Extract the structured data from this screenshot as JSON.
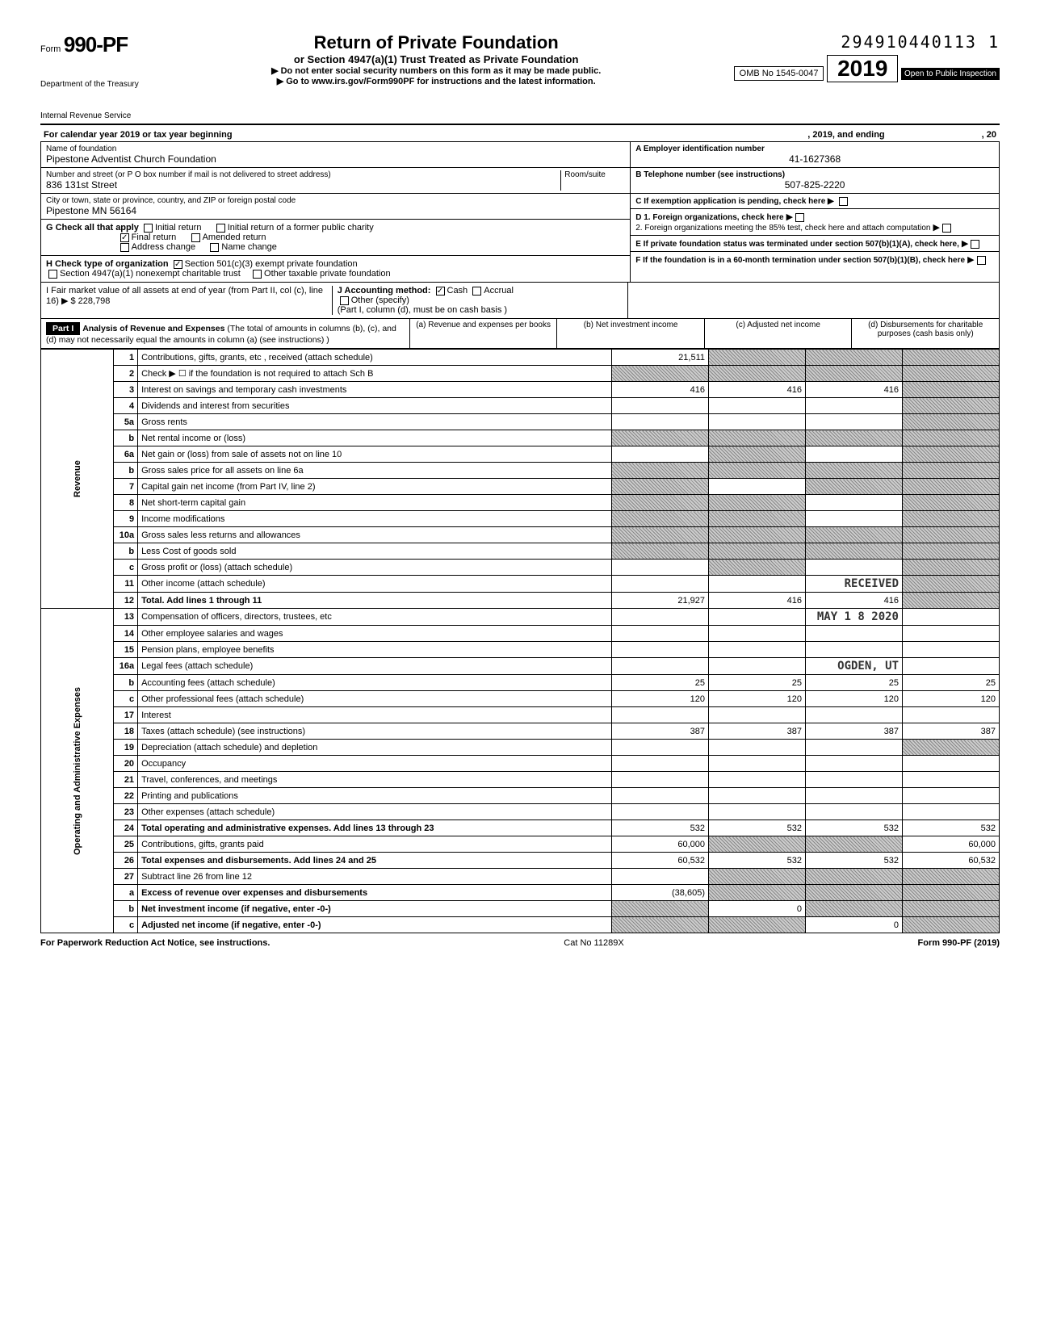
{
  "header": {
    "form_number_prefix": "Form",
    "form_number": "990-PF",
    "dept1": "Department of the Treasury",
    "dept2": "Internal Revenue Service",
    "main_title": "Return of Private Foundation",
    "subtitle": "or Section 4947(a)(1) Trust Treated as Private Foundation",
    "instr1": "▶ Do not enter social security numbers on this form as it may be made public.",
    "instr2": "▶ Go to www.irs.gov/Form990PF for instructions and the latest information.",
    "serial": "294910440113 1",
    "omb": "OMB No 1545-0047",
    "year": "2019",
    "inspection": "Open to Public Inspection",
    "cal_year": "For calendar year 2019 or tax year beginning",
    "cal_mid": ", 2019, and ending",
    "cal_end": ", 20"
  },
  "id": {
    "name_label": "Name of foundation",
    "name": "Pipestone Adventist Church Foundation",
    "addr_label": "Number and street (or P O box number if mail is not delivered to street address)",
    "addr": "836 131st Street",
    "room_label": "Room/suite",
    "city_label": "City or town, state or province, country, and ZIP or foreign postal code",
    "city": "Pipestone MN 56164",
    "a_label": "A Employer identification number",
    "a_value": "41-1627368",
    "b_label": "B Telephone number (see instructions)",
    "b_value": "507-825-2220",
    "c_label": "C If exemption application is pending, check here ▶",
    "d1_label": "D 1. Foreign organizations, check here",
    "d2_label": "2. Foreign organizations meeting the 85% test, check here and attach computation",
    "e_label": "E If private foundation status was terminated under section 507(b)(1)(A), check here,",
    "f_label": "F If the foundation is in a 60-month termination under section 507(b)(1)(B), check here"
  },
  "g": {
    "label": "G Check all that apply",
    "initial": "Initial return",
    "initial_former": "Initial return of a former public charity",
    "final": "Final return",
    "amended": "Amended return",
    "addr_change": "Address change",
    "name_change": "Name change"
  },
  "h": {
    "label": "H Check type of organization",
    "opt1": "Section 501(c)(3) exempt private foundation",
    "opt2": "Section 4947(a)(1) nonexempt charitable trust",
    "opt3": "Other taxable private foundation"
  },
  "i": {
    "label": "I Fair market value of all assets at end of year (from Part II, col (c), line 16) ▶ $",
    "value": "228,798",
    "j_label": "J Accounting method:",
    "j_cash": "Cash",
    "j_accrual": "Accrual",
    "j_other": "Other (specify)",
    "j_note": "(Part I, column (d), must be on cash basis )"
  },
  "part1": {
    "tag": "Part I",
    "title": "Analysis of Revenue and Expenses",
    "note": "(The total of amounts in columns (b), (c), and (d) may not necessarily equal the amounts in column (a) (see instructions) )",
    "col_a": "(a) Revenue and expenses per books",
    "col_b": "(b) Net investment income",
    "col_c": "(c) Adjusted net income",
    "col_d": "(d) Disbursements for charitable purposes (cash basis only)"
  },
  "side": {
    "revenue": "Revenue",
    "expenses": "Operating and Administrative Expenses"
  },
  "stamp": {
    "received": "RECEIVED",
    "date": "MAY 1 8 2020",
    "loc": "OGDEN, UT"
  },
  "lines": [
    {
      "no": "1",
      "desc": "Contributions, gifts, grants, etc , received (attach schedule)",
      "a": "21,511",
      "b": "shade",
      "c": "shade",
      "d": "shade"
    },
    {
      "no": "2",
      "desc": "Check ▶ ☐ if the foundation is not required to attach Sch B",
      "a": "shade",
      "b": "shade",
      "c": "shade",
      "d": "shade"
    },
    {
      "no": "3",
      "desc": "Interest on savings and temporary cash investments",
      "a": "416",
      "b": "416",
      "c": "416",
      "d": "shade"
    },
    {
      "no": "4",
      "desc": "Dividends and interest from securities",
      "a": "",
      "b": "",
      "c": "",
      "d": "shade"
    },
    {
      "no": "5a",
      "desc": "Gross rents",
      "a": "",
      "b": "",
      "c": "",
      "d": "shade"
    },
    {
      "no": "b",
      "desc": "Net rental income or (loss)",
      "a": "shade",
      "b": "shade",
      "c": "shade",
      "d": "shade"
    },
    {
      "no": "6a",
      "desc": "Net gain or (loss) from sale of assets not on line 10",
      "a": "",
      "b": "shade",
      "c": "",
      "d": "shade"
    },
    {
      "no": "b",
      "desc": "Gross sales price for all assets on line 6a",
      "a": "shade",
      "b": "shade",
      "c": "shade",
      "d": "shade"
    },
    {
      "no": "7",
      "desc": "Capital gain net income (from Part IV, line 2)",
      "a": "shade",
      "b": "",
      "c": "shade",
      "d": "shade"
    },
    {
      "no": "8",
      "desc": "Net short-term capital gain",
      "a": "shade",
      "b": "shade",
      "c": "",
      "d": "shade"
    },
    {
      "no": "9",
      "desc": "Income modifications",
      "a": "shade",
      "b": "shade",
      "c": "",
      "d": "shade"
    },
    {
      "no": "10a",
      "desc": "Gross sales less returns and allowances",
      "a": "shade",
      "b": "shade",
      "c": "shade",
      "d": "shade"
    },
    {
      "no": "b",
      "desc": "Less Cost of goods sold",
      "a": "shade",
      "b": "shade",
      "c": "shade",
      "d": "shade"
    },
    {
      "no": "c",
      "desc": "Gross profit or (loss) (attach schedule)",
      "a": "",
      "b": "shade",
      "c": "",
      "d": "shade"
    },
    {
      "no": "11",
      "desc": "Other income (attach schedule)",
      "a": "",
      "b": "",
      "c": "stamp-rec",
      "d": "shade"
    },
    {
      "no": "12",
      "desc": "Total. Add lines 1 through 11",
      "a": "21,927",
      "b": "416",
      "c": "416",
      "d": "shade",
      "bold": true
    },
    {
      "no": "13",
      "desc": "Compensation of officers, directors, trustees, etc",
      "a": "",
      "b": "",
      "c": "stamp-date",
      "d": ""
    },
    {
      "no": "14",
      "desc": "Other employee salaries and wages",
      "a": "",
      "b": "",
      "c": "",
      "d": ""
    },
    {
      "no": "15",
      "desc": "Pension plans, employee benefits",
      "a": "",
      "b": "",
      "c": "",
      "d": ""
    },
    {
      "no": "16a",
      "desc": "Legal fees (attach schedule)",
      "a": "",
      "b": "",
      "c": "stamp-loc",
      "d": ""
    },
    {
      "no": "b",
      "desc": "Accounting fees (attach schedule)",
      "a": "25",
      "b": "25",
      "c": "25",
      "d": "25"
    },
    {
      "no": "c",
      "desc": "Other professional fees (attach schedule)",
      "a": "120",
      "b": "120",
      "c": "120",
      "d": "120"
    },
    {
      "no": "17",
      "desc": "Interest",
      "a": "",
      "b": "",
      "c": "",
      "d": ""
    },
    {
      "no": "18",
      "desc": "Taxes (attach schedule) (see instructions)",
      "a": "387",
      "b": "387",
      "c": "387",
      "d": "387"
    },
    {
      "no": "19",
      "desc": "Depreciation (attach schedule) and depletion",
      "a": "",
      "b": "",
      "c": "",
      "d": "shade"
    },
    {
      "no": "20",
      "desc": "Occupancy",
      "a": "",
      "b": "",
      "c": "",
      "d": ""
    },
    {
      "no": "21",
      "desc": "Travel, conferences, and meetings",
      "a": "",
      "b": "",
      "c": "",
      "d": ""
    },
    {
      "no": "22",
      "desc": "Printing and publications",
      "a": "",
      "b": "",
      "c": "",
      "d": ""
    },
    {
      "no": "23",
      "desc": "Other expenses (attach schedule)",
      "a": "",
      "b": "",
      "c": "",
      "d": ""
    },
    {
      "no": "24",
      "desc": "Total operating and administrative expenses. Add lines 13 through 23",
      "a": "532",
      "b": "532",
      "c": "532",
      "d": "532",
      "bold": true
    },
    {
      "no": "25",
      "desc": "Contributions, gifts, grants paid",
      "a": "60,000",
      "b": "shade",
      "c": "shade",
      "d": "60,000"
    },
    {
      "no": "26",
      "desc": "Total expenses and disbursements. Add lines 24 and 25",
      "a": "60,532",
      "b": "532",
      "c": "532",
      "d": "60,532",
      "bold": true
    },
    {
      "no": "27",
      "desc": "Subtract line 26 from line 12",
      "a": "",
      "b": "shade",
      "c": "shade",
      "d": "shade"
    },
    {
      "no": "a",
      "desc": "Excess of revenue over expenses and disbursements",
      "a": "(38,605)",
      "b": "shade",
      "c": "shade",
      "d": "shade",
      "bold": true
    },
    {
      "no": "b",
      "desc": "Net investment income (if negative, enter -0-)",
      "a": "shade",
      "b": "0",
      "c": "shade",
      "d": "shade",
      "bold": true
    },
    {
      "no": "c",
      "desc": "Adjusted net income (if negative, enter -0-)",
      "a": "shade",
      "b": "shade",
      "c": "0",
      "d": "shade",
      "bold": true
    }
  ],
  "footer": {
    "left": "For Paperwork Reduction Act Notice, see instructions.",
    "mid": "Cat No 11289X",
    "right": "Form 990-PF (2019)"
  }
}
